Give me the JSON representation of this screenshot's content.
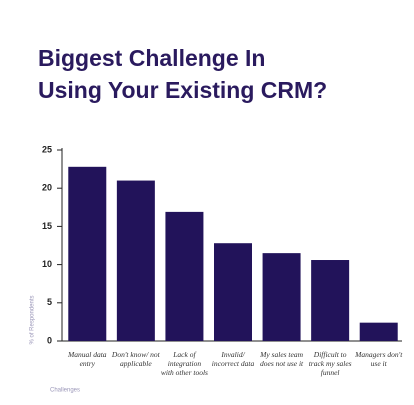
{
  "chart_data": {
    "type": "bar",
    "title": [
      "Biggest Challenge In",
      "Using Your Existing CRM?"
    ],
    "y_label": "% of Respondents",
    "x_label": "Challenges",
    "categories": [
      "Manual data entry",
      "Don't know/ not applicable",
      "Lack of integration with other tools",
      "Invalid/ incorrect data",
      "My sales team does not use it",
      "Difficult to track my sales funnel",
      "Managers don't use it"
    ],
    "values": [
      22.8,
      21,
      16.9,
      12.8,
      11.5,
      10.6,
      2.4
    ],
    "color": "#22135a",
    "ylim": [
      0,
      25
    ],
    "yticks": [
      0,
      5,
      10,
      15,
      20,
      25
    ],
    "grid": false
  }
}
